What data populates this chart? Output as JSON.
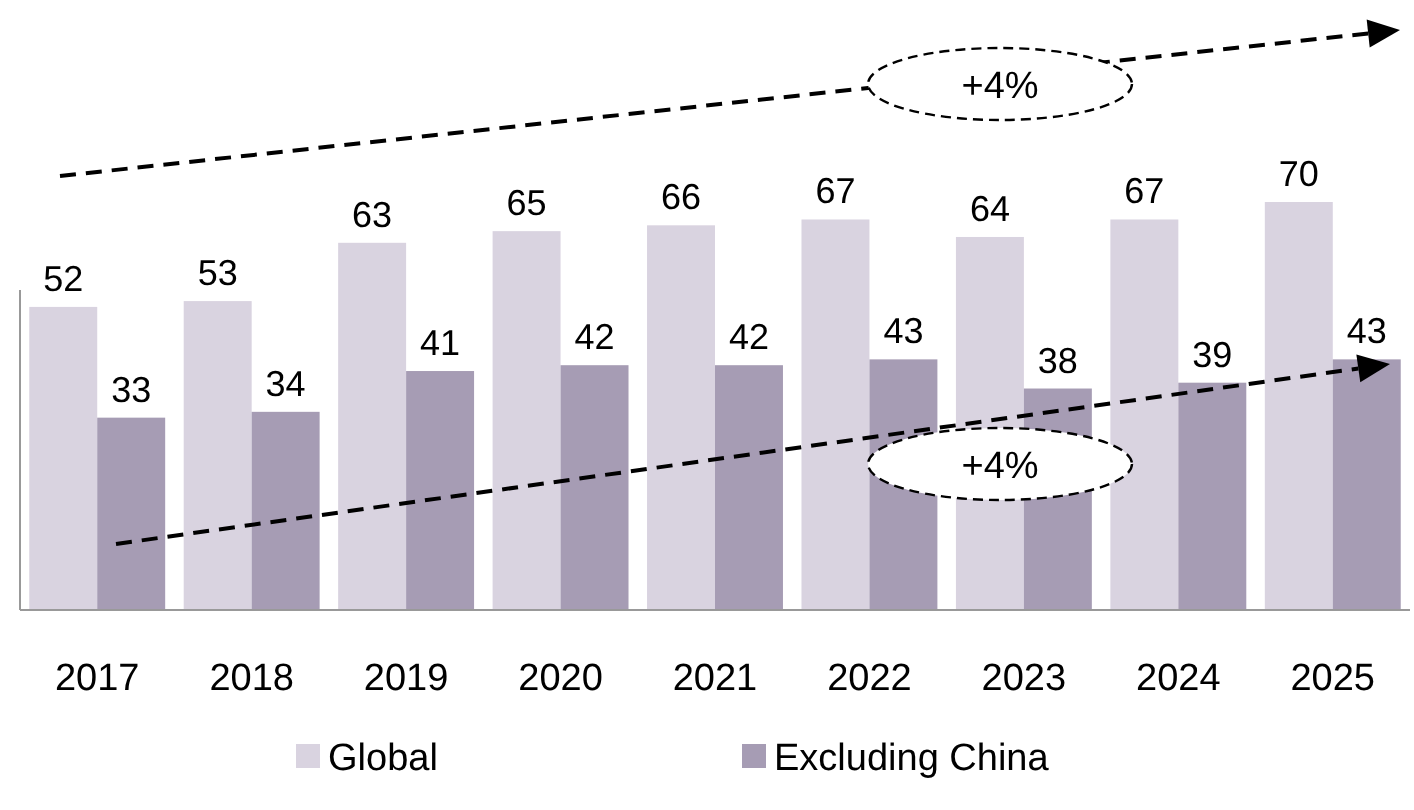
{
  "chart_data": {
    "type": "bar",
    "categories": [
      "2017",
      "2018",
      "2019",
      "2020",
      "2021",
      "2022",
      "2023",
      "2024",
      "2025"
    ],
    "series": [
      {
        "name": "Global",
        "color": "#d9d3e0",
        "values": [
          52,
          53,
          63,
          65,
          66,
          67,
          64,
          67,
          70
        ]
      },
      {
        "name": "Excluding China",
        "color": "#a69cb4",
        "values": [
          33,
          34,
          41,
          42,
          42,
          43,
          38,
          39,
          43
        ]
      }
    ],
    "data_labels": true,
    "legend": "bottom",
    "annotations": [
      "+4%",
      "+4%"
    ]
  }
}
